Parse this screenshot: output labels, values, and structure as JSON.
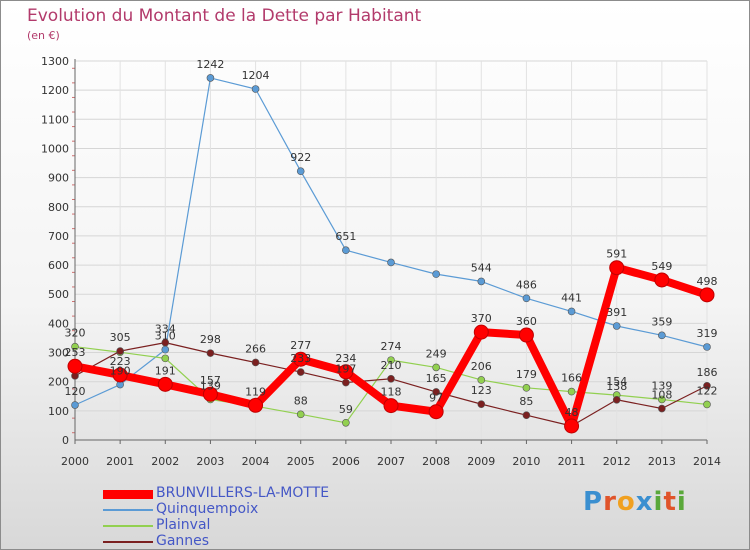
{
  "chart_data": {
    "type": "line",
    "title": "Evolution du Montant de la Dette par Habitant",
    "subtitle": "(en €)",
    "x": [
      "2000",
      "2001",
      "2002",
      "2003",
      "2004",
      "2005",
      "2006",
      "2007",
      "2008",
      "2009",
      "2010",
      "2011",
      "2012",
      "2013",
      "2014"
    ],
    "ylim": [
      0,
      1300
    ],
    "yticks": [
      0,
      100,
      200,
      300,
      400,
      500,
      600,
      700,
      800,
      900,
      1000,
      1100,
      1200,
      1300
    ],
    "grid": true,
    "legend_position": "bottom-left",
    "series": [
      {
        "name": "BRUNVILLERS-LA-MOTTE",
        "color": "#ff0000",
        "emphasis": true,
        "values": [
          253,
          223,
          191,
          157,
          119,
          277,
          234,
          118,
          97,
          370,
          360,
          48,
          591,
          549,
          498
        ]
      },
      {
        "name": "Quinquempoix",
        "color": "#5b9bd5",
        "values": [
          120,
          190,
          310,
          1242,
          1204,
          922,
          651,
          609,
          569,
          544,
          486,
          441,
          391,
          359,
          319
        ]
      },
      {
        "name": "Plainval",
        "color": "#92d050",
        "values": [
          320,
          301,
          280,
          139,
          116,
          88,
          59,
          274,
          249,
          206,
          179,
          166,
          154,
          139,
          122
        ]
      },
      {
        "name": "Gannes",
        "color": "#7b2020",
        "values": [
          220,
          305,
          334,
          298,
          266,
          233,
          197,
          210,
          165,
          123,
          85,
          48,
          138,
          108,
          186
        ]
      }
    ],
    "data_labels": {
      "BRUNVILLERS-LA-MOTTE": [
        "253",
        "223",
        "191",
        "157",
        "119",
        "277",
        "234",
        "118",
        "97",
        "370",
        "360",
        "48",
        "591",
        "549",
        "498"
      ],
      "Quinquempoix": [
        "120",
        "190",
        "310",
        "1242",
        "1204",
        "922",
        "651",
        "",
        "",
        "544",
        "486",
        "441",
        "391",
        "359",
        "319"
      ],
      "Plainval": [
        "320",
        "",
        "",
        "139",
        "",
        "88",
        "59",
        "274",
        "249",
        "206",
        "179",
        "166",
        "154",
        "139",
        "122"
      ],
      "Gannes": [
        "",
        "305",
        "334",
        "298",
        "266",
        "233",
        "197",
        "210",
        "165",
        "123",
        "85",
        "",
        "138",
        "108",
        "186"
      ]
    }
  },
  "watermark": {
    "text": "Proxiti"
  }
}
